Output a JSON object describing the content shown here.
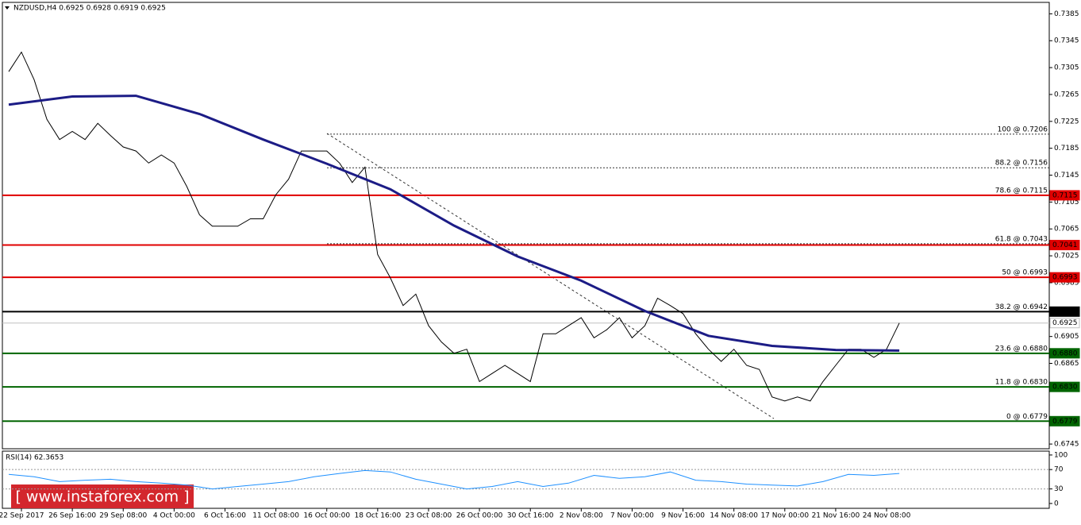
{
  "header": "NZDUSD,H4  0.6925 0.6928 0.6919 0.6925",
  "watermark": "[ www.instaforex.com ]",
  "chart_data": [
    {
      "type": "line",
      "categories": [
        null,
        "22 Sep 2017",
        null,
        null,
        null,
        "26 Sep 16:00",
        null,
        null,
        null,
        "29 Sep 08:00",
        null,
        null,
        null,
        "4 Oct 00:00",
        null,
        null,
        null,
        "6 Oct 16:00",
        null,
        null,
        null,
        "11 Oct 08:00",
        null,
        null,
        null,
        "16 Oct 00:00",
        null,
        null,
        null,
        "18 Oct 16:00",
        null,
        null,
        null,
        "23 Oct 08:00",
        null,
        null,
        null,
        "26 Oct 00:00",
        null,
        null,
        null,
        "30 Oct 16:00",
        null,
        null,
        null,
        "2 Nov 08:00",
        null,
        null,
        null,
        "7 Nov 00:00",
        null,
        null,
        null,
        "9 Nov 16:00",
        null,
        null,
        null,
        "14 Nov 08:00",
        null,
        null,
        null,
        "17 Nov 00:00",
        null,
        null,
        null,
        "21 Nov 16:00",
        null,
        null,
        null,
        "24 Nov 08:00",
        null
      ],
      "ylim": [
        0.6738,
        0.7402
      ],
      "yticks": [
        0.7385,
        0.7345,
        0.7305,
        0.7265,
        0.7225,
        0.7185,
        0.7145,
        0.7105,
        0.7065,
        0.7025,
        0.6985,
        0.6905,
        0.6865,
        0.6745
      ],
      "series": [
        {
          "color": "#000000",
          "values": [
            0.7299,
            0.7328,
            0.7287,
            0.7228,
            0.7198,
            0.721,
            0.7198,
            0.7222,
            0.7204,
            0.7187,
            0.7181,
            0.7163,
            0.7175,
            0.7163,
            0.7128,
            0.7086,
            0.7069,
            0.7069,
            0.7069,
            0.708,
            0.708,
            0.7116,
            0.7139,
            0.7181,
            0.7181,
            0.7181,
            0.7163,
            0.7134,
            0.7157,
            0.7027,
            0.6992,
            0.6951,
            0.6968,
            0.6921,
            0.6897,
            0.688,
            0.6886,
            0.6838,
            0.685,
            0.6862,
            0.685,
            0.6838,
            0.6909,
            0.6909,
            0.6921,
            0.6933,
            0.6903,
            0.6915,
            0.6933,
            0.6903,
            0.6921,
            0.6962,
            0.6951,
            0.6939,
            0.6909,
            0.6886,
            0.6868,
            0.6886,
            0.6862,
            0.6856,
            0.6815,
            0.6809,
            0.6815,
            0.6809,
            0.6838,
            0.6862,
            0.6886,
            0.6886,
            0.6874,
            0.6886,
            0.6925
          ]
        },
        {
          "color": "#1c1c86",
          "width": 3,
          "x": [
            0,
            5,
            10,
            15,
            20,
            25,
            30,
            35,
            40,
            45,
            50,
            55,
            60,
            65,
            70
          ],
          "values": [
            0.725,
            0.7262,
            0.7263,
            0.7236,
            0.7198,
            0.7162,
            0.7124,
            0.707,
            0.7024,
            0.6988,
            0.6943,
            0.6906,
            0.6891,
            0.6885,
            0.6884
          ]
        }
      ],
      "fib_levels": [
        {
          "value": 0.7206,
          "text": "100 @ 0.7206",
          "dotted": true
        },
        {
          "value": 0.7156,
          "text": "88.2 @ 0.7156",
          "dotted": true
        },
        {
          "value": 0.7115,
          "text": "78.6 @ 0.7115"
        },
        {
          "value": 0.7043,
          "text": "61.8 @ 0.7043",
          "dotted": true
        },
        {
          "value": 0.6993,
          "text": "50 @ 0.6993"
        },
        {
          "value": 0.6942,
          "text": "38.2 @ 0.6942"
        },
        {
          "value": 0.688,
          "text": "23.6 @ 0.6880"
        },
        {
          "value": 0.683,
          "text": "11.8 @ 0.6830"
        },
        {
          "value": 0.6779,
          "text": "0 @ 0.6779"
        }
      ],
      "levels": [
        {
          "value": 0.7115,
          "color": "#e00000",
          "text_color": "#ffffff"
        },
        {
          "value": 0.7041,
          "color": "#e00000",
          "text_color": "#ffffff"
        },
        {
          "value": 0.6993,
          "color": "#e00000",
          "text_color": "#ffffff"
        },
        {
          "value": 0.6942,
          "color": "#000000",
          "text_color": "#ffffff"
        },
        {
          "value": 0.6925,
          "color": "#c0c0c0",
          "text_color": "#000000"
        },
        {
          "value": 0.688,
          "label": "0.6880",
          "color": "#006400",
          "text_color": "#ffffff"
        },
        {
          "value": 0.683,
          "label": "0.6830",
          "color": "#006400",
          "text_color": "#ffffff"
        },
        {
          "value": 0.6779,
          "color": "#006400",
          "text_color": "#ffffff"
        }
      ]
    },
    {
      "type": "line",
      "title": "RSI(14) 62.3653",
      "ylim": [
        -10,
        108
      ],
      "yticks": [
        100,
        70,
        30,
        0
      ],
      "levels": [
        70,
        30
      ],
      "series": [
        {
          "color": "#1e90ff",
          "x": [
            0,
            2,
            4,
            6,
            8,
            10,
            12,
            14,
            16,
            18,
            20,
            22,
            24,
            26,
            28,
            30,
            32,
            34,
            36,
            38,
            40,
            42,
            44,
            46,
            48,
            50,
            52,
            54,
            56,
            58,
            60,
            62,
            64,
            66,
            68,
            70
          ],
          "values": [
            60,
            55,
            45,
            48,
            50,
            45,
            42,
            38,
            30,
            35,
            40,
            45,
            55,
            62,
            68,
            65,
            50,
            40,
            30,
            35,
            45,
            35,
            42,
            58,
            52,
            55,
            65,
            48,
            45,
            40,
            38,
            36,
            45,
            60,
            58,
            62
          ]
        }
      ]
    }
  ]
}
